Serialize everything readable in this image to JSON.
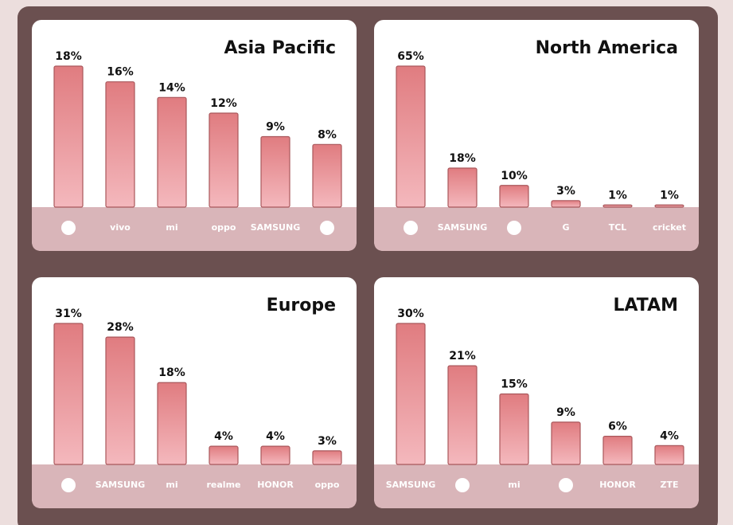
{
  "chart_data": [
    {
      "type": "bar",
      "title": "Asia Pacific",
      "categories": [
        null,
        "vivo",
        "mi",
        "oppo",
        "SAMSUNG",
        null
      ],
      "values": [
        18,
        16,
        14,
        12,
        9,
        8
      ],
      "value_labels": [
        "18%",
        "16%",
        "14%",
        "12%",
        "9%",
        "8%"
      ],
      "color": "#e58a8e"
    },
    {
      "type": "bar",
      "title": "North America",
      "categories": [
        null,
        "SAMSUNG",
        null,
        "G",
        "TCL",
        "cricket"
      ],
      "values": [
        65,
        18,
        10,
        3,
        1,
        1
      ],
      "value_labels": [
        "65%",
        "18%",
        "10%",
        "3%",
        "1%",
        "1%"
      ],
      "color": "#e58a8e"
    },
    {
      "type": "bar",
      "title": "Europe",
      "categories": [
        null,
        "SAMSUNG",
        "mi",
        "realme",
        "HONOR",
        "oppo"
      ],
      "values": [
        31,
        28,
        18,
        4,
        4,
        3
      ],
      "value_labels": [
        "31%",
        "28%",
        "18%",
        "4%",
        "4%",
        "3%"
      ],
      "color": "#e58a8e"
    },
    {
      "type": "bar",
      "title": "LATAM",
      "categories": [
        "SAMSUNG",
        null,
        "mi",
        null,
        "HONOR",
        "ZTE"
      ],
      "values": [
        30,
        21,
        15,
        9,
        6,
        4
      ],
      "value_labels": [
        "30%",
        "21%",
        "15%",
        "9%",
        "6%",
        "4%"
      ],
      "color": "#e58a8e"
    }
  ]
}
